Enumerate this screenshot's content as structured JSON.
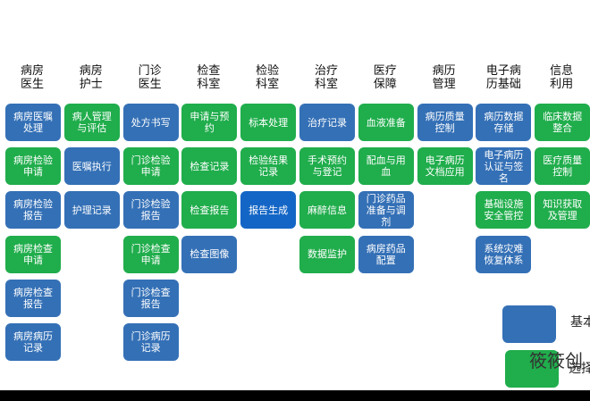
{
  "columns": [
    {
      "header": "病房医生",
      "items": [
        {
          "label": "病房医嘱处理",
          "color": "#3470b6"
        },
        {
          "label": "病房检验申请",
          "color": "#20ad4c"
        },
        {
          "label": "病房检验报告",
          "color": "#3470b6"
        },
        {
          "label": "病房检查申请",
          "color": "#20ad4c"
        },
        {
          "label": "病房检查报告",
          "color": "#3470b6"
        },
        {
          "label": "病房病历记录",
          "color": "#3470b6"
        }
      ]
    },
    {
      "header": "病房护士",
      "items": [
        {
          "label": "病人管理与评估",
          "color": "#20ad4c"
        },
        {
          "label": "医嘱执行",
          "color": "#3470b6"
        },
        {
          "label": "护理记录",
          "color": "#3470b6"
        }
      ]
    },
    {
      "header": "门诊医生",
      "items": [
        {
          "label": "处方书写",
          "color": "#3470b6"
        },
        {
          "label": "门诊检验申请",
          "color": "#20ad4c"
        },
        {
          "label": "门诊检验报告",
          "color": "#3470b6"
        },
        {
          "label": "门诊检查申请",
          "color": "#20ad4c"
        },
        {
          "label": "门诊检查报告",
          "color": "#3470b6"
        },
        {
          "label": "门诊病历记录",
          "color": "#3470b6"
        }
      ]
    },
    {
      "header": "检查科室",
      "items": [
        {
          "label": "申请与预约",
          "color": "#20ad4c"
        },
        {
          "label": "检查记录",
          "color": "#20ad4c"
        },
        {
          "label": "检查报告",
          "color": "#20ad4c"
        },
        {
          "label": "检查图像",
          "color": "#3470b6"
        }
      ]
    },
    {
      "header": "检验科室",
      "items": [
        {
          "label": "标本处理",
          "color": "#20ad4c"
        },
        {
          "label": "检验结果记录",
          "color": "#20ad4c"
        },
        {
          "label": "报告生成",
          "color": "#1466c6"
        }
      ]
    },
    {
      "header": "治疗科室",
      "items": [
        {
          "label": "治疗记录",
          "color": "#3470b6"
        },
        {
          "label": "手术预约与登记",
          "color": "#20ad4c"
        },
        {
          "label": "麻醉信息",
          "color": "#20ad4c"
        },
        {
          "label": "数据监护",
          "color": "#20ad4c"
        }
      ]
    },
    {
      "header": "医疗保障",
      "items": [
        {
          "label": "血液准备",
          "color": "#20ad4c"
        },
        {
          "label": "配血与用血",
          "color": "#20ad4c"
        },
        {
          "label": "门诊药品准备与调剂",
          "color": "#3470b6"
        },
        {
          "label": "病房药品配置",
          "color": "#3470b6"
        }
      ]
    },
    {
      "header": "病历管理",
      "items": [
        {
          "label": "病历质量控制",
          "color": "#3470b6"
        },
        {
          "label": "电子病历文档应用",
          "color": "#20ad4c"
        }
      ]
    },
    {
      "header": "电子病历基础",
      "items": [
        {
          "label": "病历数据存储",
          "color": "#3470b6"
        },
        {
          "label": "电子病历认证与签名",
          "color": "#3470b6"
        },
        {
          "label": "基础设施安全管控",
          "color": "#20ad4c"
        },
        {
          "label": "系统灾难恢复体系",
          "color": "#3470b6"
        }
      ]
    },
    {
      "header": "信息利用",
      "items": [
        {
          "label": "临床数据整合",
          "color": "#20ad4c"
        },
        {
          "label": "医疗质量控制",
          "color": "#20ad4c"
        },
        {
          "label": "知识获取及管理",
          "color": "#20ad4c"
        }
      ]
    }
  ],
  "legend": [
    {
      "label": "基本",
      "color": "#3470b6"
    },
    {
      "label": "选择",
      "color": "#20ad4c"
    }
  ],
  "watermark": "筱筱创"
}
